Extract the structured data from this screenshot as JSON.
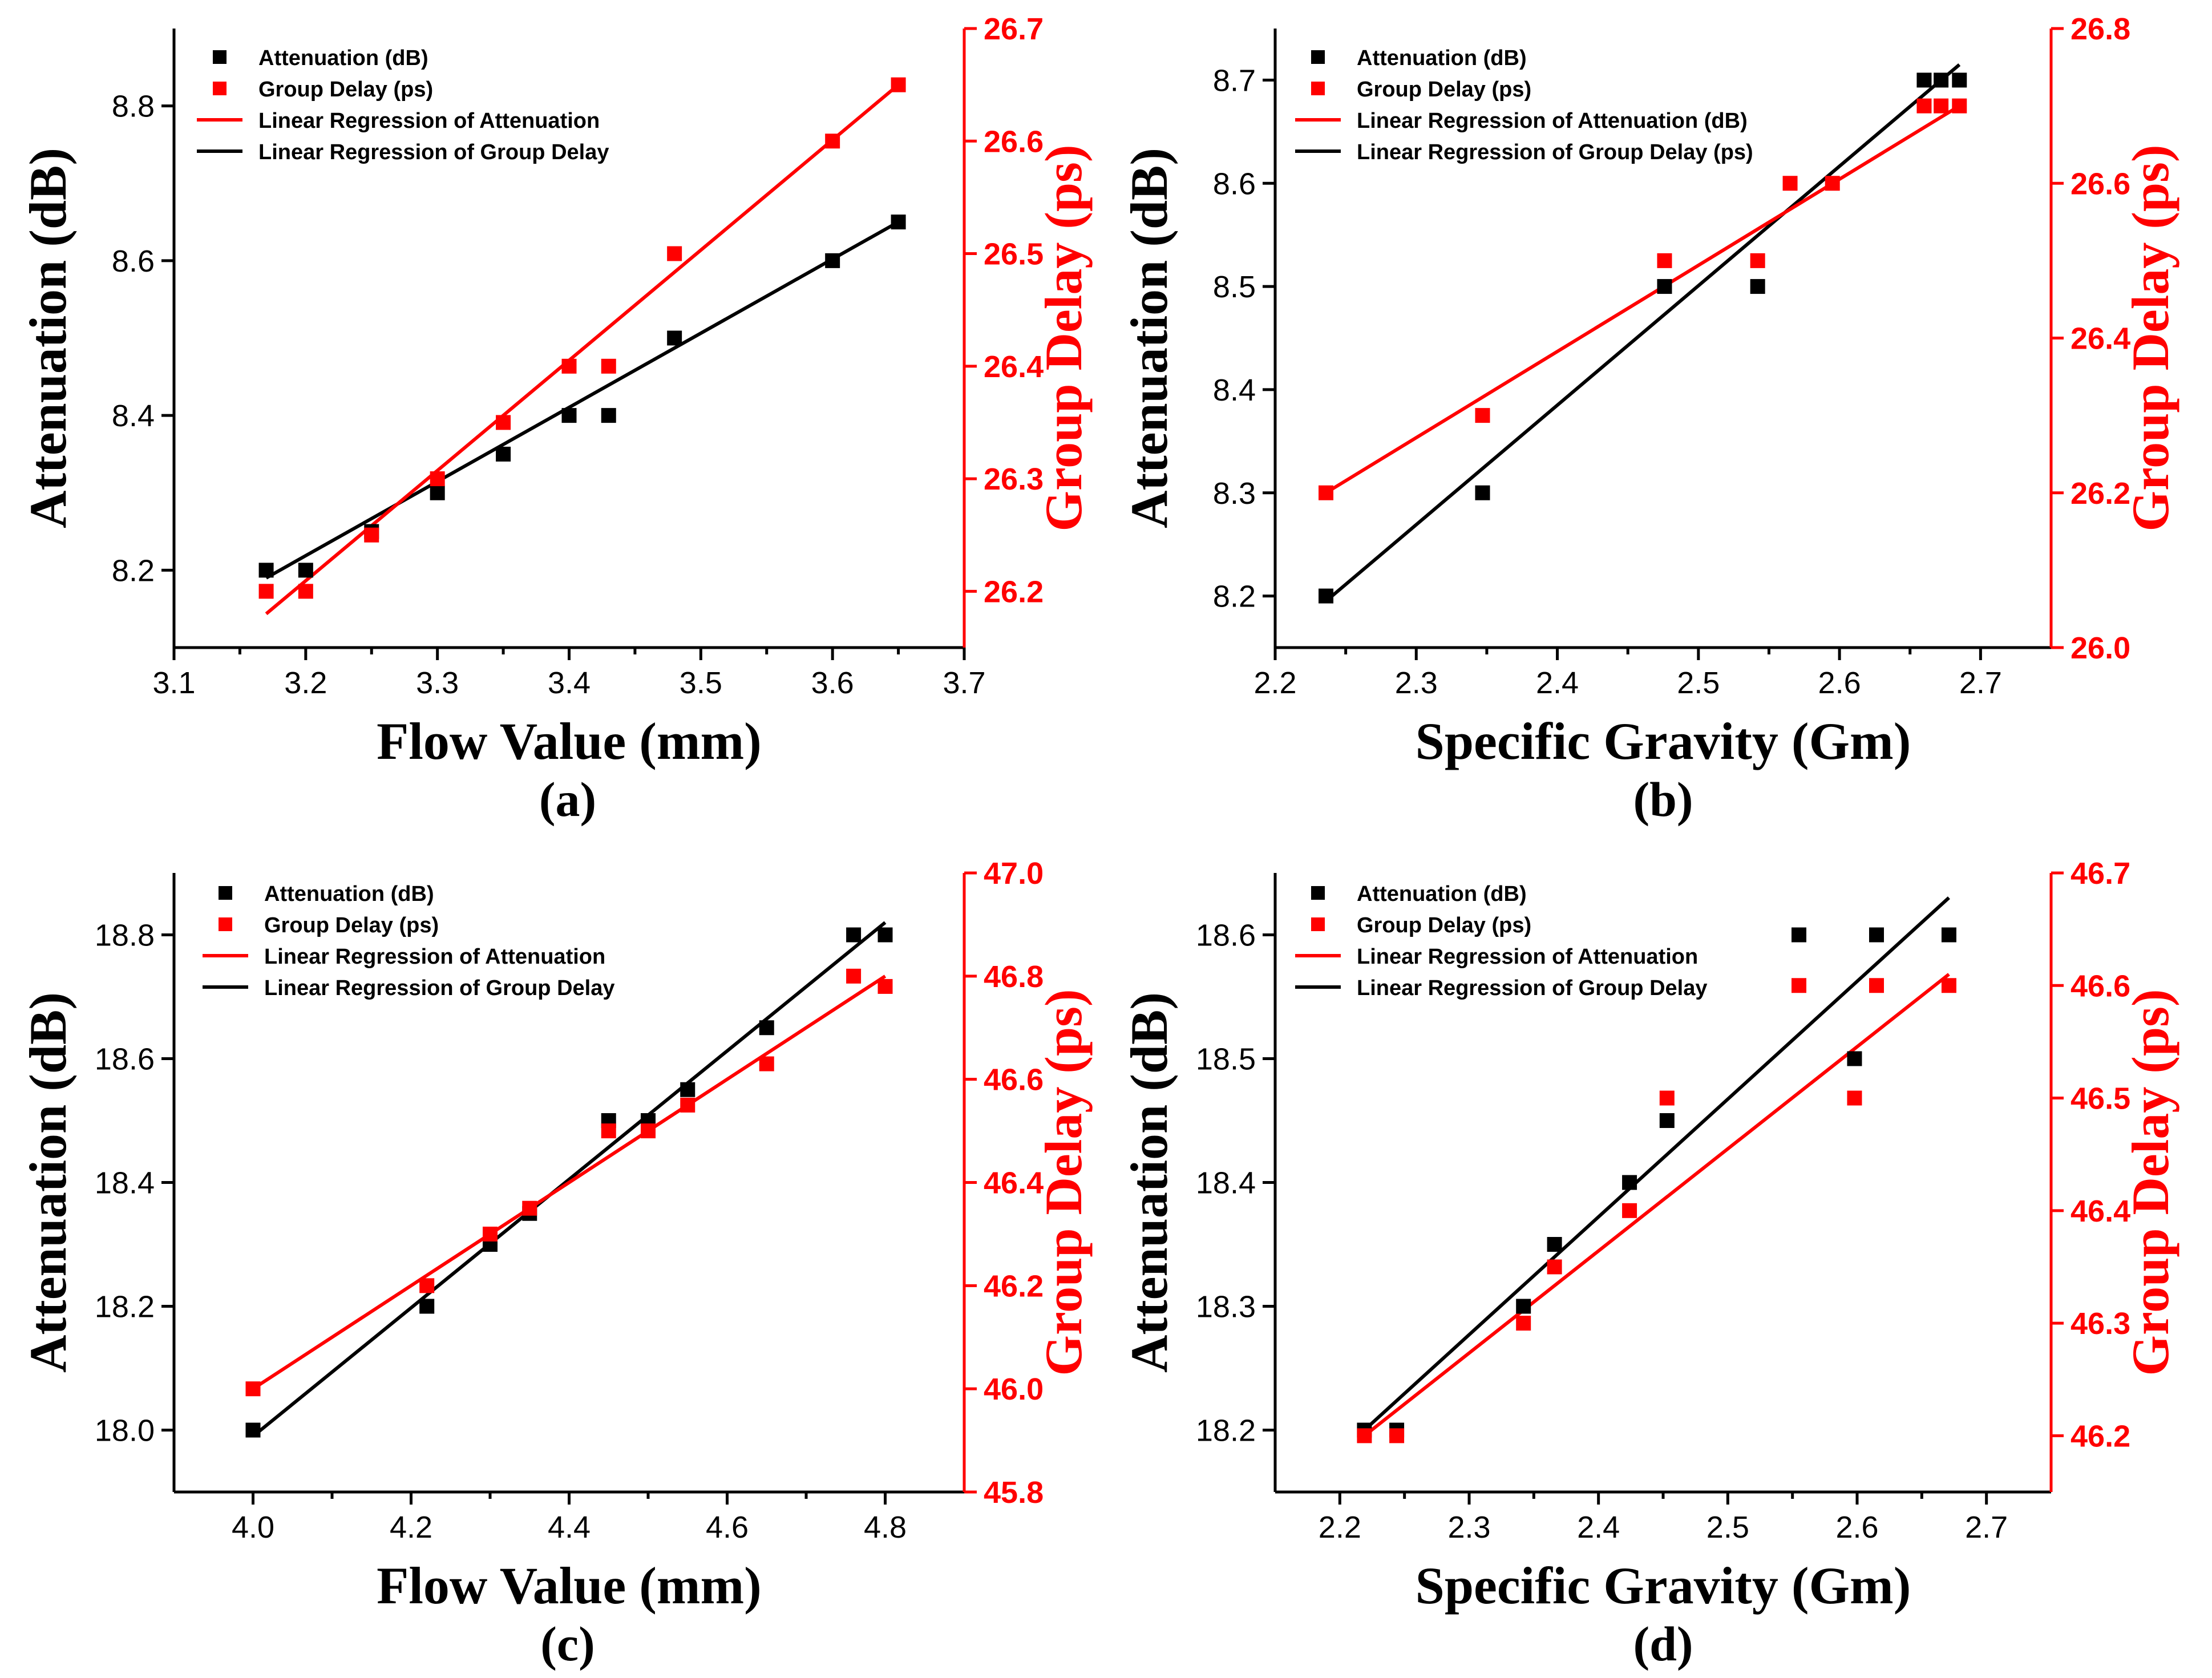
{
  "colors": {
    "attenuation": "#000000",
    "group_delay": "#ff0000"
  },
  "chart_data": [
    {
      "panel": "(a)",
      "type": "scatter",
      "xlabel": "Flow Value (mm)",
      "ylabel": "Attenuation (dB)",
      "y2label": "Group Delay (ps)",
      "xlim": [
        3.1,
        3.7
      ],
      "xticks": [
        3.1,
        3.2,
        3.3,
        3.4,
        3.5,
        3.6,
        3.7
      ],
      "xtick_decimals": 1,
      "ylim": [
        8.1,
        8.9
      ],
      "yticks": [
        8.2,
        8.4,
        8.6,
        8.8
      ],
      "ytick_decimals": 1,
      "y2lim": [
        26.15,
        26.7
      ],
      "y2ticks": [
        26.2,
        26.3,
        26.4,
        26.5,
        26.6,
        26.7
      ],
      "y2tick_decimals": 1,
      "legend": [
        "Attenuation (dB)",
        "Group Delay (ps)",
        "Linear Regression of Attenuation",
        "Linear Regression of Group Delay"
      ],
      "legend_position": "top-left",
      "series": [
        {
          "name": "Attenuation (dB)",
          "axis": "left",
          "color": "#000000",
          "x": [
            3.17,
            3.2,
            3.25,
            3.3,
            3.35,
            3.4,
            3.43,
            3.48,
            3.6,
            3.65
          ],
          "y": [
            8.2,
            8.2,
            8.25,
            8.3,
            8.35,
            8.4,
            8.4,
            8.5,
            8.6,
            8.65
          ]
        },
        {
          "name": "Group Delay (ps)",
          "axis": "right",
          "color": "#ff0000",
          "x": [
            3.17,
            3.2,
            3.25,
            3.3,
            3.35,
            3.4,
            3.43,
            3.48,
            3.6,
            3.65
          ],
          "y": [
            26.2,
            26.2,
            26.25,
            26.3,
            26.35,
            26.4,
            26.4,
            26.5,
            26.6,
            26.65
          ]
        }
      ],
      "fits": [
        {
          "name": "Linear Regression of Attenuation",
          "axis": "left",
          "color": "#000000",
          "x": [
            3.17,
            3.65
          ],
          "y": [
            8.19,
            8.65
          ]
        },
        {
          "name": "Linear Regression of Group Delay",
          "axis": "right",
          "color": "#ff0000",
          "x": [
            3.17,
            3.65
          ],
          "y": [
            26.18,
            26.65
          ]
        }
      ]
    },
    {
      "panel": "(b)",
      "type": "scatter",
      "xlabel": "Specific Gravity (Gm)",
      "ylabel": "Attenuation (dB)",
      "y2label": "Group Delay (ps)",
      "xlim": [
        2.2,
        2.75
      ],
      "xticks": [
        2.2,
        2.3,
        2.4,
        2.5,
        2.6,
        2.7
      ],
      "xtick_decimals": 1,
      "ylim": [
        8.15,
        8.75
      ],
      "yticks": [
        8.2,
        8.3,
        8.4,
        8.5,
        8.6,
        8.7
      ],
      "ytick_decimals": 1,
      "y2lim": [
        26.0,
        26.8
      ],
      "y2ticks": [
        26.0,
        26.2,
        26.4,
        26.6,
        26.8
      ],
      "y2tick_decimals": 1,
      "legend": [
        "Attenuation (dB)",
        "Group Delay (ps)",
        "Linear Regression of Attenuation (dB)",
        "Linear Regression of Group Delay (ps)"
      ],
      "legend_position": "top-left",
      "series": [
        {
          "name": "Attenuation (dB)",
          "axis": "left",
          "color": "#000000",
          "x": [
            2.236,
            2.347,
            2.476,
            2.542,
            2.66,
            2.672,
            2.685
          ],
          "y": [
            8.2,
            8.3,
            8.5,
            8.5,
            8.7,
            8.7,
            8.7
          ]
        },
        {
          "name": "Group Delay (ps)",
          "axis": "right",
          "color": "#ff0000",
          "x": [
            2.236,
            2.347,
            2.476,
            2.542,
            2.565,
            2.595,
            2.66,
            2.672,
            2.685
          ],
          "y": [
            26.2,
            26.3,
            26.5,
            26.5,
            26.6,
            26.6,
            26.7,
            26.7,
            26.7
          ]
        }
      ],
      "fits": [
        {
          "name": "Linear Regression of Attenuation (dB)",
          "axis": "left",
          "color": "#000000",
          "x": [
            2.236,
            2.685
          ],
          "y": [
            8.195,
            8.715
          ]
        },
        {
          "name": "Linear Regression of Group Delay (ps)",
          "axis": "right",
          "color": "#ff0000",
          "x": [
            2.236,
            2.685
          ],
          "y": [
            26.2,
            26.7
          ]
        }
      ]
    },
    {
      "panel": "(c)",
      "type": "scatter",
      "xlabel": "Flow Value (mm)",
      "ylabel": "Attenuation (dB)",
      "y2label": "Group Delay (ps)",
      "xlim": [
        3.9,
        4.9
      ],
      "xticks": [
        4.0,
        4.2,
        4.4,
        4.6,
        4.8
      ],
      "xtick_decimals": 1,
      "ylim": [
        17.9,
        18.9
      ],
      "yticks": [
        18.0,
        18.2,
        18.4,
        18.6,
        18.8
      ],
      "ytick_decimals": 1,
      "y2lim": [
        45.8,
        47.0
      ],
      "y2ticks": [
        45.8,
        46.0,
        46.2,
        46.4,
        46.6,
        46.8,
        47.0
      ],
      "y2tick_decimals": 1,
      "legend": [
        "Attenuation (dB)",
        "Group Delay (ps)",
        "Linear Regression of Attenuation",
        "Linear Regression of Group Delay"
      ],
      "legend_position": "top-left",
      "series": [
        {
          "name": "Attenuation (dB)",
          "axis": "left",
          "color": "#000000",
          "x": [
            4.0,
            4.22,
            4.3,
            4.35,
            4.45,
            4.5,
            4.55,
            4.65,
            4.76,
            4.8
          ],
          "y": [
            18.0,
            18.2,
            18.3,
            18.35,
            18.5,
            18.5,
            18.55,
            18.65,
            18.8,
            18.8
          ]
        },
        {
          "name": "Group Delay (ps)",
          "axis": "right",
          "color": "#ff0000",
          "x": [
            4.0,
            4.22,
            4.3,
            4.35,
            4.45,
            4.5,
            4.55,
            4.65,
            4.76,
            4.8
          ],
          "y": [
            46.0,
            46.2,
            46.3,
            46.35,
            46.5,
            46.5,
            46.55,
            46.63,
            46.8,
            46.78
          ]
        }
      ],
      "fits": [
        {
          "name": "Linear Regression of Attenuation",
          "axis": "left",
          "color": "#000000",
          "x": [
            4.0,
            4.8
          ],
          "y": [
            17.99,
            18.82
          ]
        },
        {
          "name": "Linear Regression of Group Delay",
          "axis": "right",
          "color": "#ff0000",
          "x": [
            4.0,
            4.8
          ],
          "y": [
            46.0,
            46.8
          ]
        }
      ]
    },
    {
      "panel": "(d)",
      "type": "scatter",
      "xlabel": "Specific Gravity (Gm)",
      "ylabel": "Attenuation (dB)",
      "y2label": "Group Delay (ps)",
      "xlim": [
        2.15,
        2.75
      ],
      "xticks": [
        2.2,
        2.3,
        2.4,
        2.5,
        2.6,
        2.7
      ],
      "xtick_decimals": 1,
      "ylim": [
        18.15,
        18.65
      ],
      "yticks": [
        18.2,
        18.3,
        18.4,
        18.5,
        18.6
      ],
      "ytick_decimals": 1,
      "y2lim": [
        46.15,
        46.7
      ],
      "y2ticks": [
        46.2,
        46.3,
        46.4,
        46.5,
        46.6,
        46.7
      ],
      "y2tick_decimals": 1,
      "legend": [
        "Attenuation (dB)",
        "Group Delay (ps)",
        "Linear Regression of Attenuation",
        "Linear Regression of Group Delay"
      ],
      "legend_position": "top-left",
      "series": [
        {
          "name": "Attenuation (dB)",
          "axis": "left",
          "color": "#000000",
          "x": [
            2.219,
            2.244,
            2.342,
            2.366,
            2.424,
            2.453,
            2.555,
            2.598,
            2.615,
            2.671
          ],
          "y": [
            18.2,
            18.2,
            18.3,
            18.35,
            18.4,
            18.45,
            18.6,
            18.5,
            18.6,
            18.6
          ]
        },
        {
          "name": "Group Delay (ps)",
          "axis": "right",
          "color": "#ff0000",
          "x": [
            2.219,
            2.244,
            2.342,
            2.366,
            2.424,
            2.453,
            2.555,
            2.598,
            2.615,
            2.671
          ],
          "y": [
            46.2,
            46.2,
            46.3,
            46.35,
            46.4,
            46.5,
            46.6,
            46.5,
            46.6,
            46.6
          ]
        }
      ],
      "fits": [
        {
          "name": "Linear Regression of Attenuation",
          "axis": "left",
          "color": "#000000",
          "x": [
            2.219,
            2.671
          ],
          "y": [
            18.2,
            18.63
          ]
        },
        {
          "name": "Linear Regression of Group Delay",
          "axis": "right",
          "color": "#ff0000",
          "x": [
            2.219,
            2.671
          ],
          "y": [
            46.2,
            46.61
          ]
        }
      ]
    }
  ]
}
